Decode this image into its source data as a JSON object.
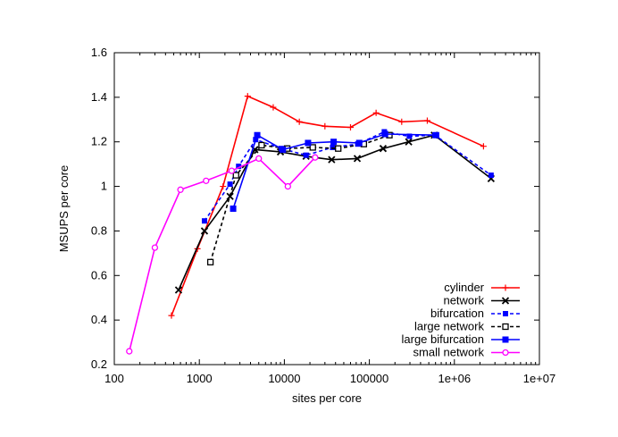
{
  "chart_data": {
    "type": "line",
    "title": "",
    "xlabel": "sites per core",
    "ylabel": "MSUPS per core",
    "xscale": "log",
    "xlim": [
      100,
      10000000
    ],
    "ylim": [
      0.2,
      1.6
    ],
    "x_ticks": [
      100,
      1000,
      10000,
      100000,
      1000000,
      10000000
    ],
    "x_tick_labels": [
      "100",
      "1000",
      "10000",
      "100000",
      "1e+06",
      "1e+07"
    ],
    "y_ticks": [
      0.2,
      0.4,
      0.6,
      0.8,
      1.0,
      1.2,
      1.4,
      1.6
    ],
    "y_tick_labels": [
      "0.2",
      "0.4",
      "0.6",
      "0.8",
      "1",
      "1.2",
      "1.4",
      "1.6"
    ],
    "grid": false,
    "legend_position": "bottom-right",
    "series": [
      {
        "name": "cylinder",
        "color": "#ff0000",
        "dash": "solid",
        "marker": "plus",
        "points": [
          [
            470,
            0.42
          ],
          [
            950,
            0.72
          ],
          [
            1900,
            1.0
          ],
          [
            3700,
            1.405
          ],
          [
            7400,
            1.355
          ],
          [
            15000,
            1.29
          ],
          [
            30000,
            1.27
          ],
          [
            60000,
            1.265
          ],
          [
            120000,
            1.33
          ],
          [
            240000,
            1.29
          ],
          [
            480000,
            1.295
          ],
          [
            2200000,
            1.18
          ]
        ]
      },
      {
        "name": "network",
        "color": "#000000",
        "dash": "solid",
        "marker": "cross",
        "points": [
          [
            570,
            0.535
          ],
          [
            1150,
            0.8
          ],
          [
            2300,
            0.955
          ],
          [
            4500,
            1.165
          ],
          [
            9000,
            1.155
          ],
          [
            18000,
            1.135
          ],
          [
            36000,
            1.12
          ],
          [
            72000,
            1.125
          ],
          [
            145000,
            1.17
          ],
          [
            290000,
            1.2
          ],
          [
            580000,
            1.23
          ],
          [
            2700000,
            1.035
          ]
        ]
      },
      {
        "name": "bifurcation",
        "color": "#0000ff",
        "dash": "dashed",
        "marker": "square",
        "points": [
          [
            1150,
            0.845
          ],
          [
            2300,
            1.01
          ],
          [
            2900,
            1.09
          ],
          [
            4600,
            1.21
          ],
          [
            9200,
            1.17
          ],
          [
            18000,
            1.14
          ],
          [
            37000,
            1.175
          ],
          [
            73000,
            1.19
          ],
          [
            150000,
            1.245
          ],
          [
            295000,
            1.225
          ],
          [
            590000,
            1.23
          ],
          [
            2700000,
            1.05
          ]
        ]
      },
      {
        "name": "large network",
        "color": "#000000",
        "dash": "dashed",
        "marker": "open-square",
        "points": [
          [
            1350,
            0.66
          ],
          [
            2700,
            1.05
          ],
          [
            5400,
            1.185
          ],
          [
            10800,
            1.17
          ],
          [
            21600,
            1.175
          ],
          [
            43000,
            1.17
          ],
          [
            86000,
            1.19
          ],
          [
            172000,
            1.23
          ]
        ]
      },
      {
        "name": "large bifurcation",
        "color": "#0000ff",
        "dash": "solid",
        "marker": "filled-square",
        "points": [
          [
            2500,
            0.9
          ],
          [
            4800,
            1.23
          ],
          [
            9600,
            1.165
          ],
          [
            19000,
            1.195
          ],
          [
            38000,
            1.2
          ],
          [
            76000,
            1.195
          ],
          [
            153000,
            1.235
          ],
          [
            610000,
            1.23
          ]
        ]
      },
      {
        "name": "small network",
        "color": "#ff00ff",
        "dash": "solid",
        "marker": "circle",
        "points": [
          [
            150,
            0.26
          ],
          [
            300,
            0.725
          ],
          [
            600,
            0.985
          ],
          [
            1200,
            1.025
          ],
          [
            2400,
            1.07
          ],
          [
            5000,
            1.125
          ],
          [
            11000,
            1.0
          ],
          [
            23000,
            1.13
          ]
        ]
      }
    ]
  }
}
